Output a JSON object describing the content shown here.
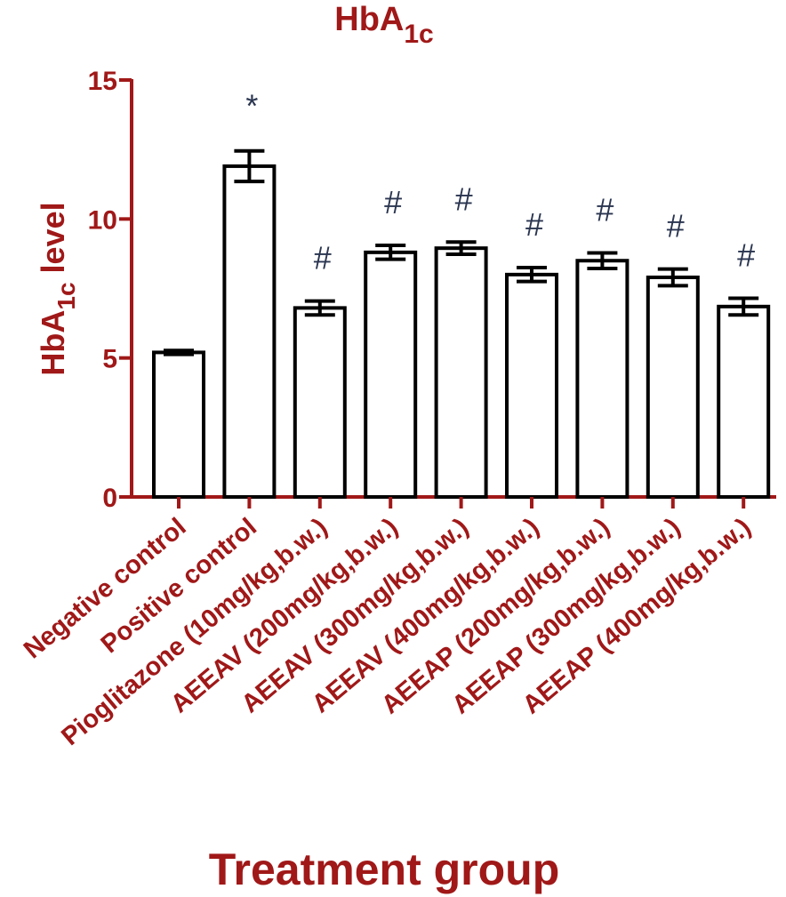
{
  "chart_data": {
    "type": "bar",
    "title_main": "HbA",
    "title_sub": "1c",
    "ylabel_main": "HbA",
    "ylabel_sub": "1c",
    "ylabel_rest": " level",
    "xlabel": "Treatment group",
    "ylim": [
      0,
      15
    ],
    "yticks": [
      "0",
      "5",
      "10",
      "15"
    ],
    "categories": [
      "Negative control",
      "Positive control",
      "Pioglitazone (10mg/kg,b.w.)",
      "AEEAV (200mg/kg,b.w.)",
      "AEEAV (300mg/kg,b.w.)",
      "AEEAV (400mg/kg,b.w.)",
      "AEEAP (200mg/kg,b.w.)",
      "AEEAP (300mg/kg,b.w.)",
      "AEEAP (400mg/kg,b.w.)"
    ],
    "values": [
      5.2,
      11.9,
      6.8,
      8.8,
      8.95,
      8.0,
      8.5,
      7.9,
      6.85
    ],
    "errors": [
      0.07,
      0.55,
      0.25,
      0.25,
      0.22,
      0.25,
      0.28,
      0.3,
      0.3
    ],
    "annotations": [
      "",
      "*",
      "#",
      "#",
      "#",
      "#",
      "#",
      "#",
      "#"
    ],
    "colors": {
      "axis": "#a01818",
      "text": "#a01818",
      "bar_fill": "#ffffff",
      "bar_stroke": "#000000",
      "marks": "#2a3550"
    },
    "grid": false,
    "legend": "none"
  }
}
